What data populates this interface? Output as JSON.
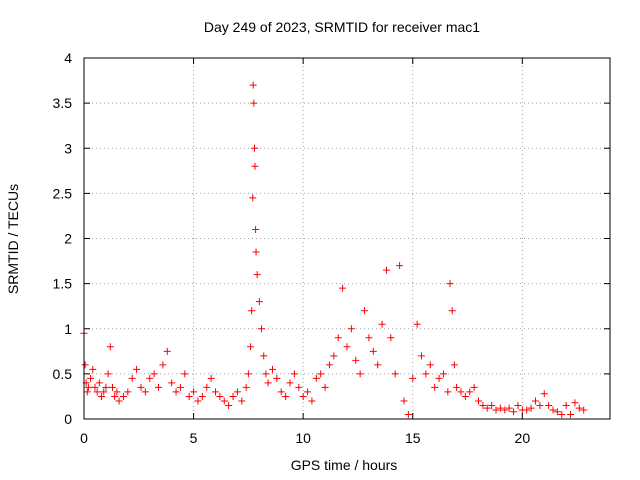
{
  "chart_data": {
    "type": "scatter",
    "title": "Day 249 of 2023, SRMTID for receiver mac1",
    "xlabel": "GPS time / hours",
    "ylabel": "SRMTID / TECUs",
    "xlim": [
      0,
      24
    ],
    "ylim": [
      0,
      4
    ],
    "x_ticks": [
      0,
      5,
      10,
      15,
      20
    ],
    "x_tick_labels": [
      "0",
      "5",
      "10",
      "15",
      "20"
    ],
    "y_ticks": [
      0,
      0.5,
      1,
      1.5,
      2,
      2.5,
      3,
      3.5,
      4
    ],
    "y_tick_labels": [
      "0",
      "0.5",
      "1",
      "1.5",
      "2",
      "2.5",
      "3",
      "3.5",
      "4"
    ],
    "grid": true,
    "marker": "+",
    "marker_color": "#ff0000",
    "series": [
      {
        "name": "SRMTID",
        "x": [
          0.0,
          0.05,
          0.1,
          0.15,
          0.2,
          0.3,
          0.4,
          0.5,
          0.6,
          0.7,
          0.8,
          0.9,
          1.0,
          1.1,
          1.2,
          1.3,
          1.4,
          1.5,
          1.6,
          1.8,
          2.0,
          2.2,
          2.4,
          2.6,
          2.8,
          3.0,
          3.2,
          3.4,
          3.6,
          3.8,
          4.0,
          4.2,
          4.4,
          4.6,
          4.8,
          5.0,
          5.2,
          5.4,
          5.6,
          5.8,
          6.0,
          6.2,
          6.4,
          6.6,
          6.8,
          7.0,
          7.2,
          7.4,
          7.5,
          7.6,
          7.65,
          7.7,
          7.72,
          7.75,
          7.78,
          7.8,
          7.83,
          7.85,
          7.9,
          8.0,
          8.1,
          8.2,
          8.3,
          8.4,
          8.6,
          8.8,
          9.0,
          9.2,
          9.4,
          9.6,
          9.8,
          10.0,
          10.2,
          10.4,
          10.6,
          10.8,
          11.0,
          11.2,
          11.4,
          11.6,
          11.8,
          12.0,
          12.2,
          12.4,
          12.6,
          12.8,
          13.0,
          13.2,
          13.4,
          13.6,
          13.8,
          14.0,
          14.2,
          14.4,
          14.6,
          14.8,
          15.0,
          15.2,
          15.4,
          15.6,
          15.8,
          16.0,
          16.2,
          16.4,
          16.6,
          16.7,
          16.8,
          16.9,
          17.0,
          17.2,
          17.4,
          17.6,
          17.8,
          18.0,
          18.2,
          18.4,
          18.6,
          18.8,
          19.0,
          19.2,
          19.4,
          19.6,
          19.8,
          20.0,
          20.2,
          20.4,
          20.6,
          20.8,
          21.0,
          21.2,
          21.4,
          21.6,
          21.8,
          22.0,
          22.2,
          22.4,
          22.6,
          22.8
        ],
        "y": [
          0.95,
          0.6,
          0.4,
          0.3,
          0.35,
          0.45,
          0.55,
          0.35,
          0.3,
          0.4,
          0.25,
          0.3,
          0.35,
          0.5,
          0.8,
          0.35,
          0.25,
          0.3,
          0.2,
          0.25,
          0.3,
          0.45,
          0.55,
          0.35,
          0.3,
          0.45,
          0.5,
          0.35,
          0.6,
          0.75,
          0.4,
          0.3,
          0.35,
          0.5,
          0.25,
          0.3,
          0.2,
          0.25,
          0.35,
          0.45,
          0.3,
          0.25,
          0.2,
          0.15,
          0.25,
          0.3,
          0.2,
          0.35,
          0.5,
          0.8,
          1.2,
          2.45,
          3.7,
          3.5,
          3.0,
          2.8,
          2.1,
          1.85,
          1.6,
          1.3,
          1.0,
          0.7,
          0.5,
          0.4,
          0.55,
          0.45,
          0.3,
          0.25,
          0.4,
          0.5,
          0.35,
          0.25,
          0.3,
          0.2,
          0.45,
          0.5,
          0.35,
          0.6,
          0.7,
          0.9,
          1.45,
          0.8,
          1.0,
          0.65,
          0.5,
          1.2,
          0.9,
          0.75,
          0.6,
          1.05,
          1.65,
          0.9,
          0.5,
          1.7,
          0.2,
          0.05,
          0.45,
          1.05,
          0.7,
          0.5,
          0.6,
          0.35,
          0.45,
          0.5,
          0.3,
          1.5,
          1.2,
          0.6,
          0.35,
          0.3,
          0.25,
          0.3,
          0.35,
          0.2,
          0.15,
          0.12,
          0.15,
          0.1,
          0.12,
          0.1,
          0.12,
          0.08,
          0.15,
          0.1,
          0.1,
          0.12,
          0.2,
          0.15,
          0.28,
          0.15,
          0.1,
          0.08,
          0.05,
          0.15,
          0.05,
          0.18,
          0.12,
          0.1
        ]
      }
    ]
  }
}
